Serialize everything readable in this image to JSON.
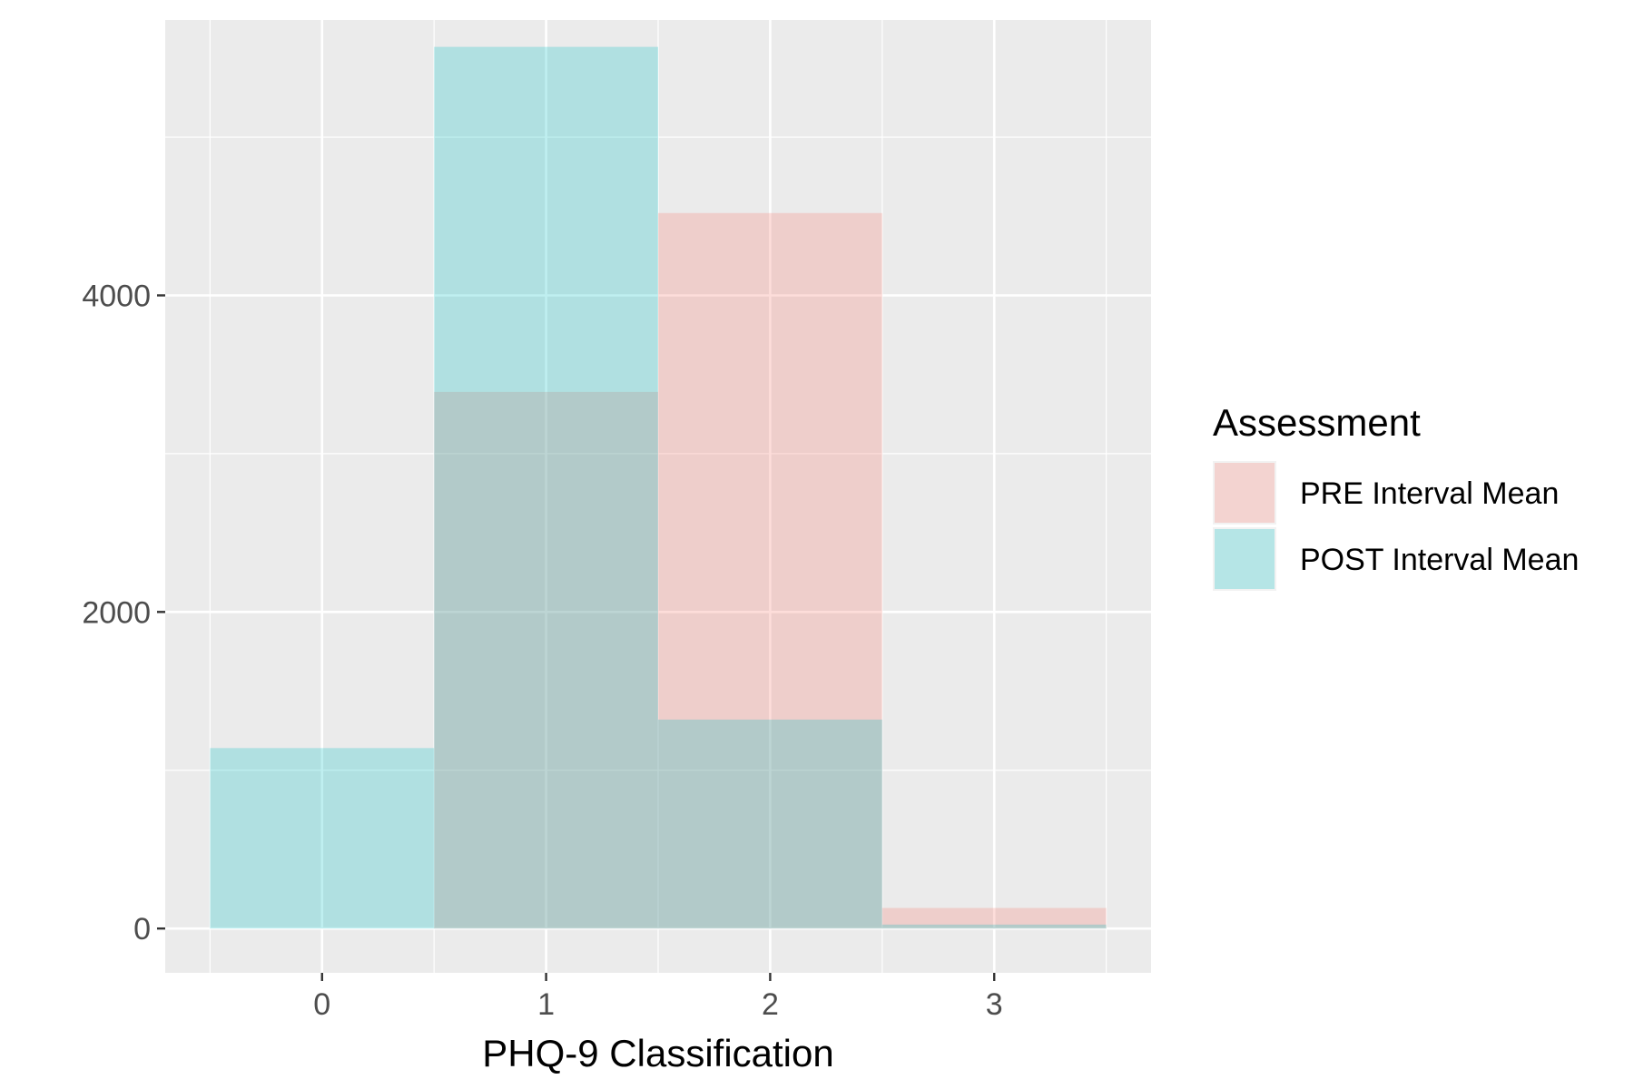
{
  "chart_data": {
    "type": "bar",
    "title": "",
    "xlabel": "PHQ-9 Classification",
    "ylabel": "",
    "categories": [
      "0",
      "1",
      "2",
      "3"
    ],
    "x": [
      0,
      1,
      2,
      3
    ],
    "xlim": [
      -0.7,
      3.7
    ],
    "ylim": [
      -280,
      5740
    ],
    "y_ticks": [
      0,
      2000,
      4000
    ],
    "y_minor_ticks": [
      1000,
      3000,
      5000
    ],
    "x_minor_ticks": [
      -0.5,
      0.5,
      1.5,
      2.5,
      3.5
    ],
    "grid": true,
    "legend": {
      "title": "Assessment",
      "placement": "right"
    },
    "series": [
      {
        "name": "PRE Interval Mean",
        "color": "#F8766D",
        "opacity": 0.25,
        "values": [
          0,
          3390,
          4520,
          130
        ]
      },
      {
        "name": "POST Interval Mean",
        "color": "#00BFC4",
        "opacity": 0.25,
        "values": [
          1140,
          5570,
          1320,
          25
        ]
      }
    ],
    "panel_background": "#EBEBEB",
    "grid_color": "#FFFFFF"
  }
}
